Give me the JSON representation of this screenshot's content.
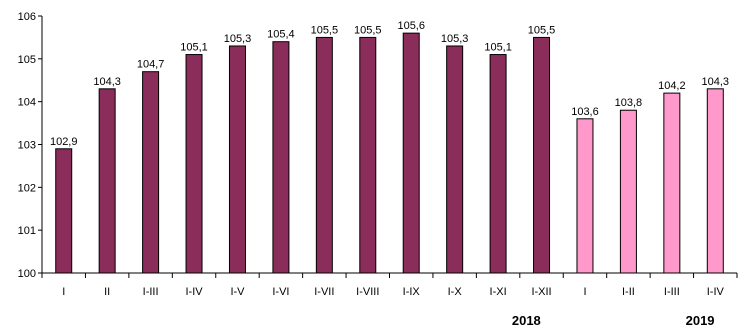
{
  "chart_data": {
    "type": "bar",
    "title": "",
    "xlabel": "",
    "ylabel": "",
    "ylim": [
      100,
      106
    ],
    "yticks": [
      100,
      101,
      102,
      103,
      104,
      105,
      106
    ],
    "grid": false,
    "legend": "none",
    "categories": [
      "I",
      "II",
      "I-III",
      "I-IV",
      "I-V",
      "I-VI",
      "I-VII",
      "I-VIII",
      "I-IX",
      "I-X",
      "I-XI",
      "I-XII",
      "I",
      "I-II",
      "I-III",
      "I-IV"
    ],
    "values": [
      102.9,
      104.3,
      104.7,
      105.1,
      105.3,
      105.4,
      105.5,
      105.5,
      105.6,
      105.3,
      105.1,
      105.5,
      103.6,
      103.8,
      104.2,
      104.3
    ],
    "value_labels": [
      "102,9",
      "104,3",
      "104,7",
      "105,1",
      "105,3",
      "105,4",
      "105,5",
      "105,5",
      "105,6",
      "105,3",
      "105,1",
      "105,5",
      "103,6",
      "103,8",
      "104,2",
      "104,3"
    ],
    "groups": [
      {
        "year": "2018",
        "count": 12,
        "color": "#8b2d5a"
      },
      {
        "year": "2019",
        "count": 4,
        "color": "#ff99cc"
      }
    ]
  }
}
